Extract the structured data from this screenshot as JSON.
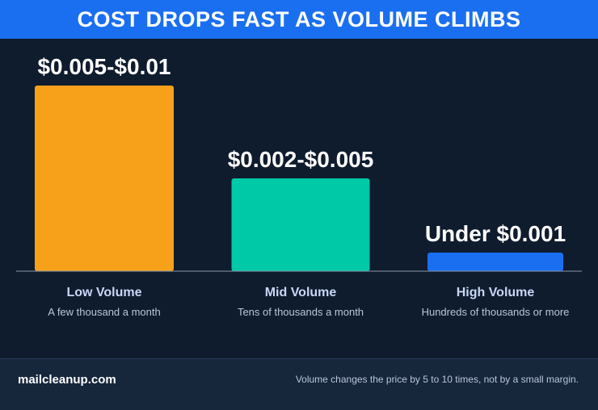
{
  "title": "COST DROPS FAST AS VOLUME CLIMBS",
  "colors": {
    "background": "#0f1c2e",
    "title_bar": "#1a6ff0",
    "low": "#f7a11a",
    "mid": "#00c9a7",
    "high": "#1a6ff0"
  },
  "chart_data": {
    "type": "bar",
    "title": "COST DROPS FAST AS VOLUME CLIMBS",
    "categories": [
      "Low Volume",
      "Mid Volume",
      "High Volume"
    ],
    "subtitles": [
      "A few thousand a month",
      "Tens of thousands a month",
      "Hundreds of thousands or more"
    ],
    "value_labels": [
      "$0.005-$0.01",
      "$0.002-$0.005",
      "Under $0.001"
    ],
    "values": [
      0.01,
      0.005,
      0.001
    ],
    "ylim": [
      0,
      0.01
    ],
    "grid": false,
    "xlabel": "",
    "ylabel": ""
  },
  "footer": {
    "brand": "mailcleanup.com",
    "note": "Volume changes the price by 5 to 10 times, not by a small margin."
  }
}
